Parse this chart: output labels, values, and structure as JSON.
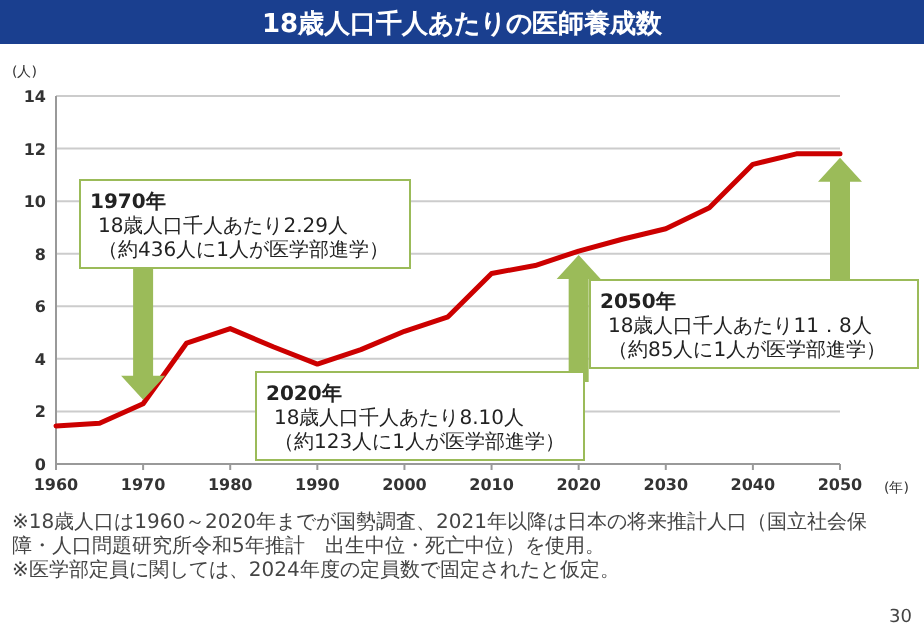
{
  "chart_data": {
    "type": "line",
    "title": "18歳人口千人あたりの医師養成数",
    "ylabel": "(人)",
    "xlabel": "(年)",
    "x": [
      1960,
      1965,
      1970,
      1975,
      1980,
      1985,
      1990,
      1995,
      2000,
      2005,
      2010,
      2015,
      2020,
      2025,
      2030,
      2035,
      2040,
      2045,
      2050
    ],
    "series": [
      {
        "color": "#cc0000",
        "values": [
          1.45,
          1.55,
          2.29,
          4.6,
          5.15,
          4.45,
          3.8,
          4.35,
          5.05,
          5.6,
          7.25,
          7.55,
          8.1,
          8.55,
          8.95,
          9.75,
          11.4,
          11.8,
          11.8
        ]
      }
    ],
    "xlim": [
      1960,
      2050
    ],
    "xticks": [
      1960,
      1970,
      1980,
      1990,
      2000,
      2010,
      2020,
      2030,
      2040,
      2050
    ],
    "ylim": [
      0,
      14
    ],
    "yticks": [
      0,
      2,
      4,
      6,
      8,
      10,
      12,
      14
    ],
    "grid": "y",
    "marker": "none",
    "line_style": "solid",
    "annotations": [
      "1970年\n18歳人口千人あたり2.29人（約436人に1人が医学部進学）",
      "2020年\n18歳人口千人あたり8.10人（約123人に1人が医学部進学）",
      "2050年\n18歳人口千人あたり11．8人（約85人に1人が医学部進学）",
      "※18歳人口は1960～2020年までが国勢調査、2021年以降は日本の将来推計人口（国立社会保障・人口問題研究所令和5年推計　出生中位・死亡中位）を使用。",
      "※医学部定員に関しては、2024年度の定員数で固定されたと仮定。",
      "30"
    ]
  }
}
